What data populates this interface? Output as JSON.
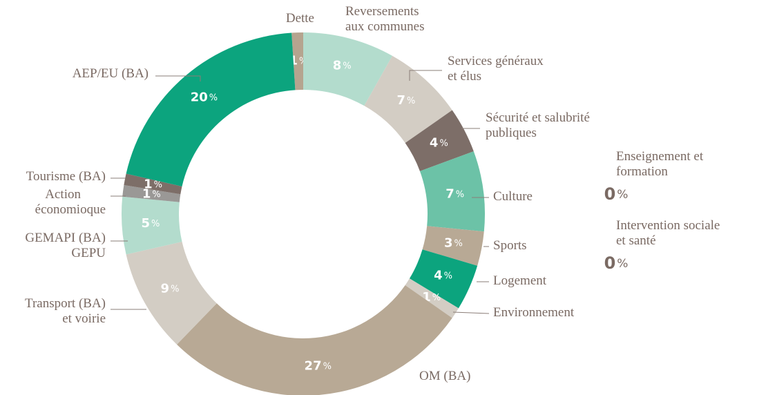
{
  "chart_data": {
    "type": "donut",
    "categories": [
      "Dette",
      "Reversements aux communes",
      "Services généraux et élus",
      "Sécurité et salubrité publiques",
      "Culture",
      "Sports",
      "Logement",
      "Environnement",
      "OM (BA)",
      "Transport (BA) et voirie",
      "GEMAPI (BA) GEPU",
      "Action économioque",
      "Tourisme (BA)",
      "AEP/EU (BA)",
      "Enseignement et formation",
      "Intervention sociale et santé"
    ],
    "values": [
      1,
      8,
      7,
      4,
      7,
      3,
      4,
      1,
      27,
      9,
      5,
      1,
      1,
      20,
      0,
      0
    ],
    "value_labels": [
      "1%",
      "8%",
      "7%",
      "4%",
      "7%",
      "3%",
      "4%",
      "1%",
      "27%",
      "9%",
      "5%",
      "1%",
      "1%",
      "20%",
      "0%",
      "0%"
    ],
    "colors": [
      "#b5a48f",
      "#b3dccd",
      "#d3cdc4",
      "#7d6e68",
      "#6cc2a7",
      "#b8a995",
      "#0ca47e",
      "#d3cdc4",
      "#b8a995",
      "#d3cdc4",
      "#b3dccd",
      "#9a9896",
      "#7d6e68",
      "#0ca47e",
      "#d3cdc4",
      "#d3cdc4"
    ]
  }
}
